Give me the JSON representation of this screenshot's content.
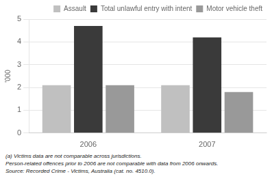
{
  "chart_data": {
    "type": "bar",
    "categories": [
      "2006",
      "2007"
    ],
    "series": [
      {
        "name": "Assault",
        "color": "#c0c0c0",
        "values": [
          2.1,
          2.1
        ]
      },
      {
        "name": "Total unlawful entry with intent",
        "color": "#3a3a3a",
        "values": [
          4.7,
          4.2
        ]
      },
      {
        "name": "Motor vehicle theft",
        "color": "#999999",
        "values": [
          2.1,
          1.8
        ]
      }
    ],
    "ylabel": "'000",
    "ylim": [
      0,
      5
    ],
    "yticks": [
      0,
      1,
      2,
      3,
      4,
      5
    ],
    "grid": true,
    "legend": "upper right",
    "annotations": [
      "(a) Victims data are not comparable across jurisdictions.",
      "Person-related offences prior to 2006 are not comparable with data from 2006 onwards.",
      "Source: Recorded Crime - Victims, Australia (cat. no. 4510.0)."
    ]
  }
}
